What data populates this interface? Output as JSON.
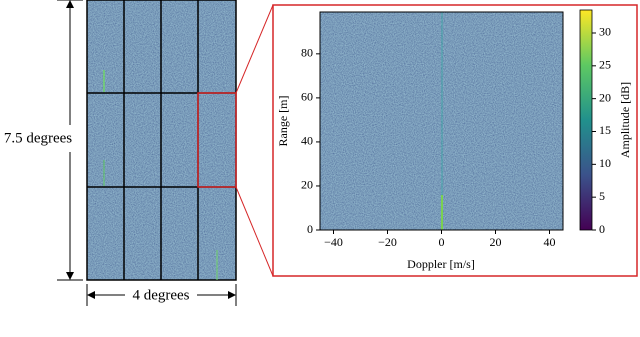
{
  "chart_data": {
    "type": "heatmap",
    "left_label": "7.5 degrees",
    "bottom_label": "4 degrees",
    "x_label": "Doppler [m/s]",
    "y_label": "Range [m]",
    "colorbar_label": "Amplitude [dB]",
    "xlim": [
      -45,
      45
    ],
    "xticks": [
      {
        "value": -40,
        "label": "−40"
      },
      {
        "value": -20,
        "label": "−20"
      },
      0,
      20,
      40
    ],
    "ylim": [
      0,
      99
    ],
    "yticks": [
      0,
      20,
      40,
      60,
      80
    ],
    "clim": [
      0,
      33.5
    ],
    "cticks": [
      0,
      5,
      10,
      15,
      20,
      25,
      30
    ],
    "colormap": [
      "#440154",
      "#3b528b",
      "#21918c",
      "#5ec962",
      "#fde725"
    ]
  }
}
